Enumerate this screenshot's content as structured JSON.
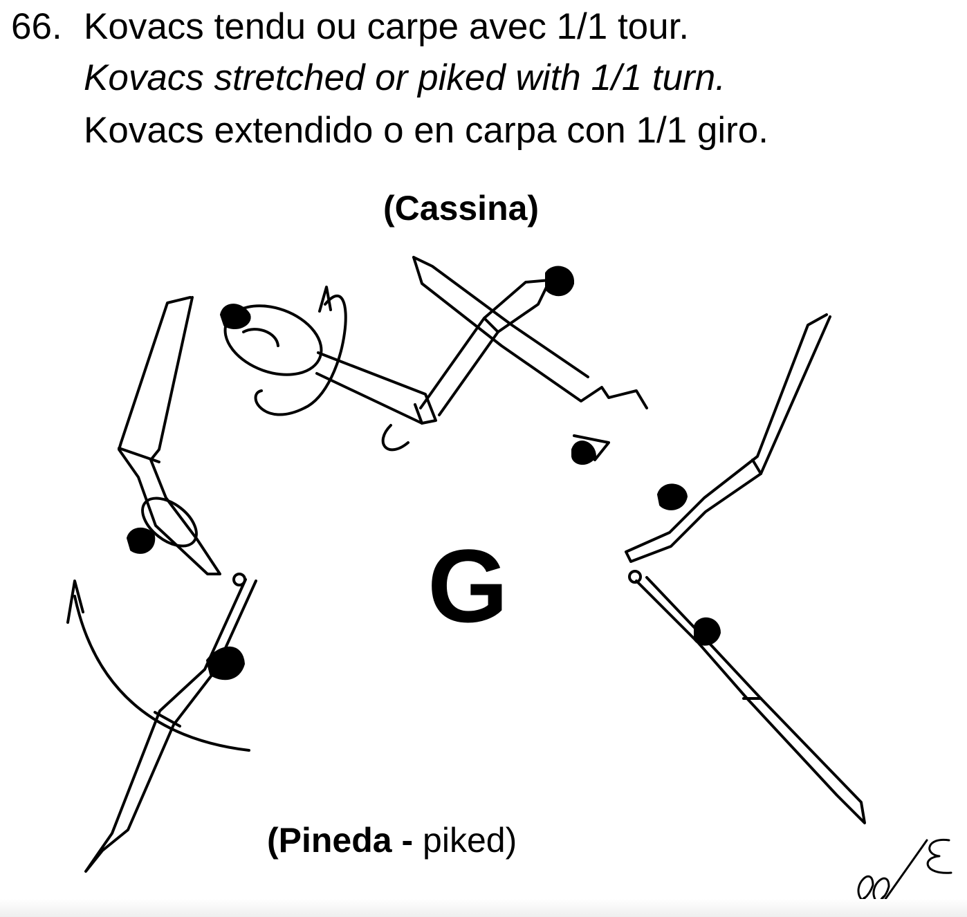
{
  "element": {
    "number": "66.",
    "text_fr": "Kovacs tendu ou carpe avec 1/1 tour.",
    "text_en": "Kovacs stretched or piked with 1/1 turn.",
    "text_es": "Kovacs extendido o en carpa con 1/1 giro."
  },
  "names": {
    "top": "(Cassina)",
    "bottom_name": "(Pineda",
    "bottom_sep": " - ",
    "bottom_variant": "piked)"
  },
  "difficulty_value": "G",
  "signature": "ll/E",
  "figure_icons": [
    "gymnast-figure",
    "rotation-arrow-icon",
    "turn-arrow-icon",
    "bar-icon"
  ]
}
